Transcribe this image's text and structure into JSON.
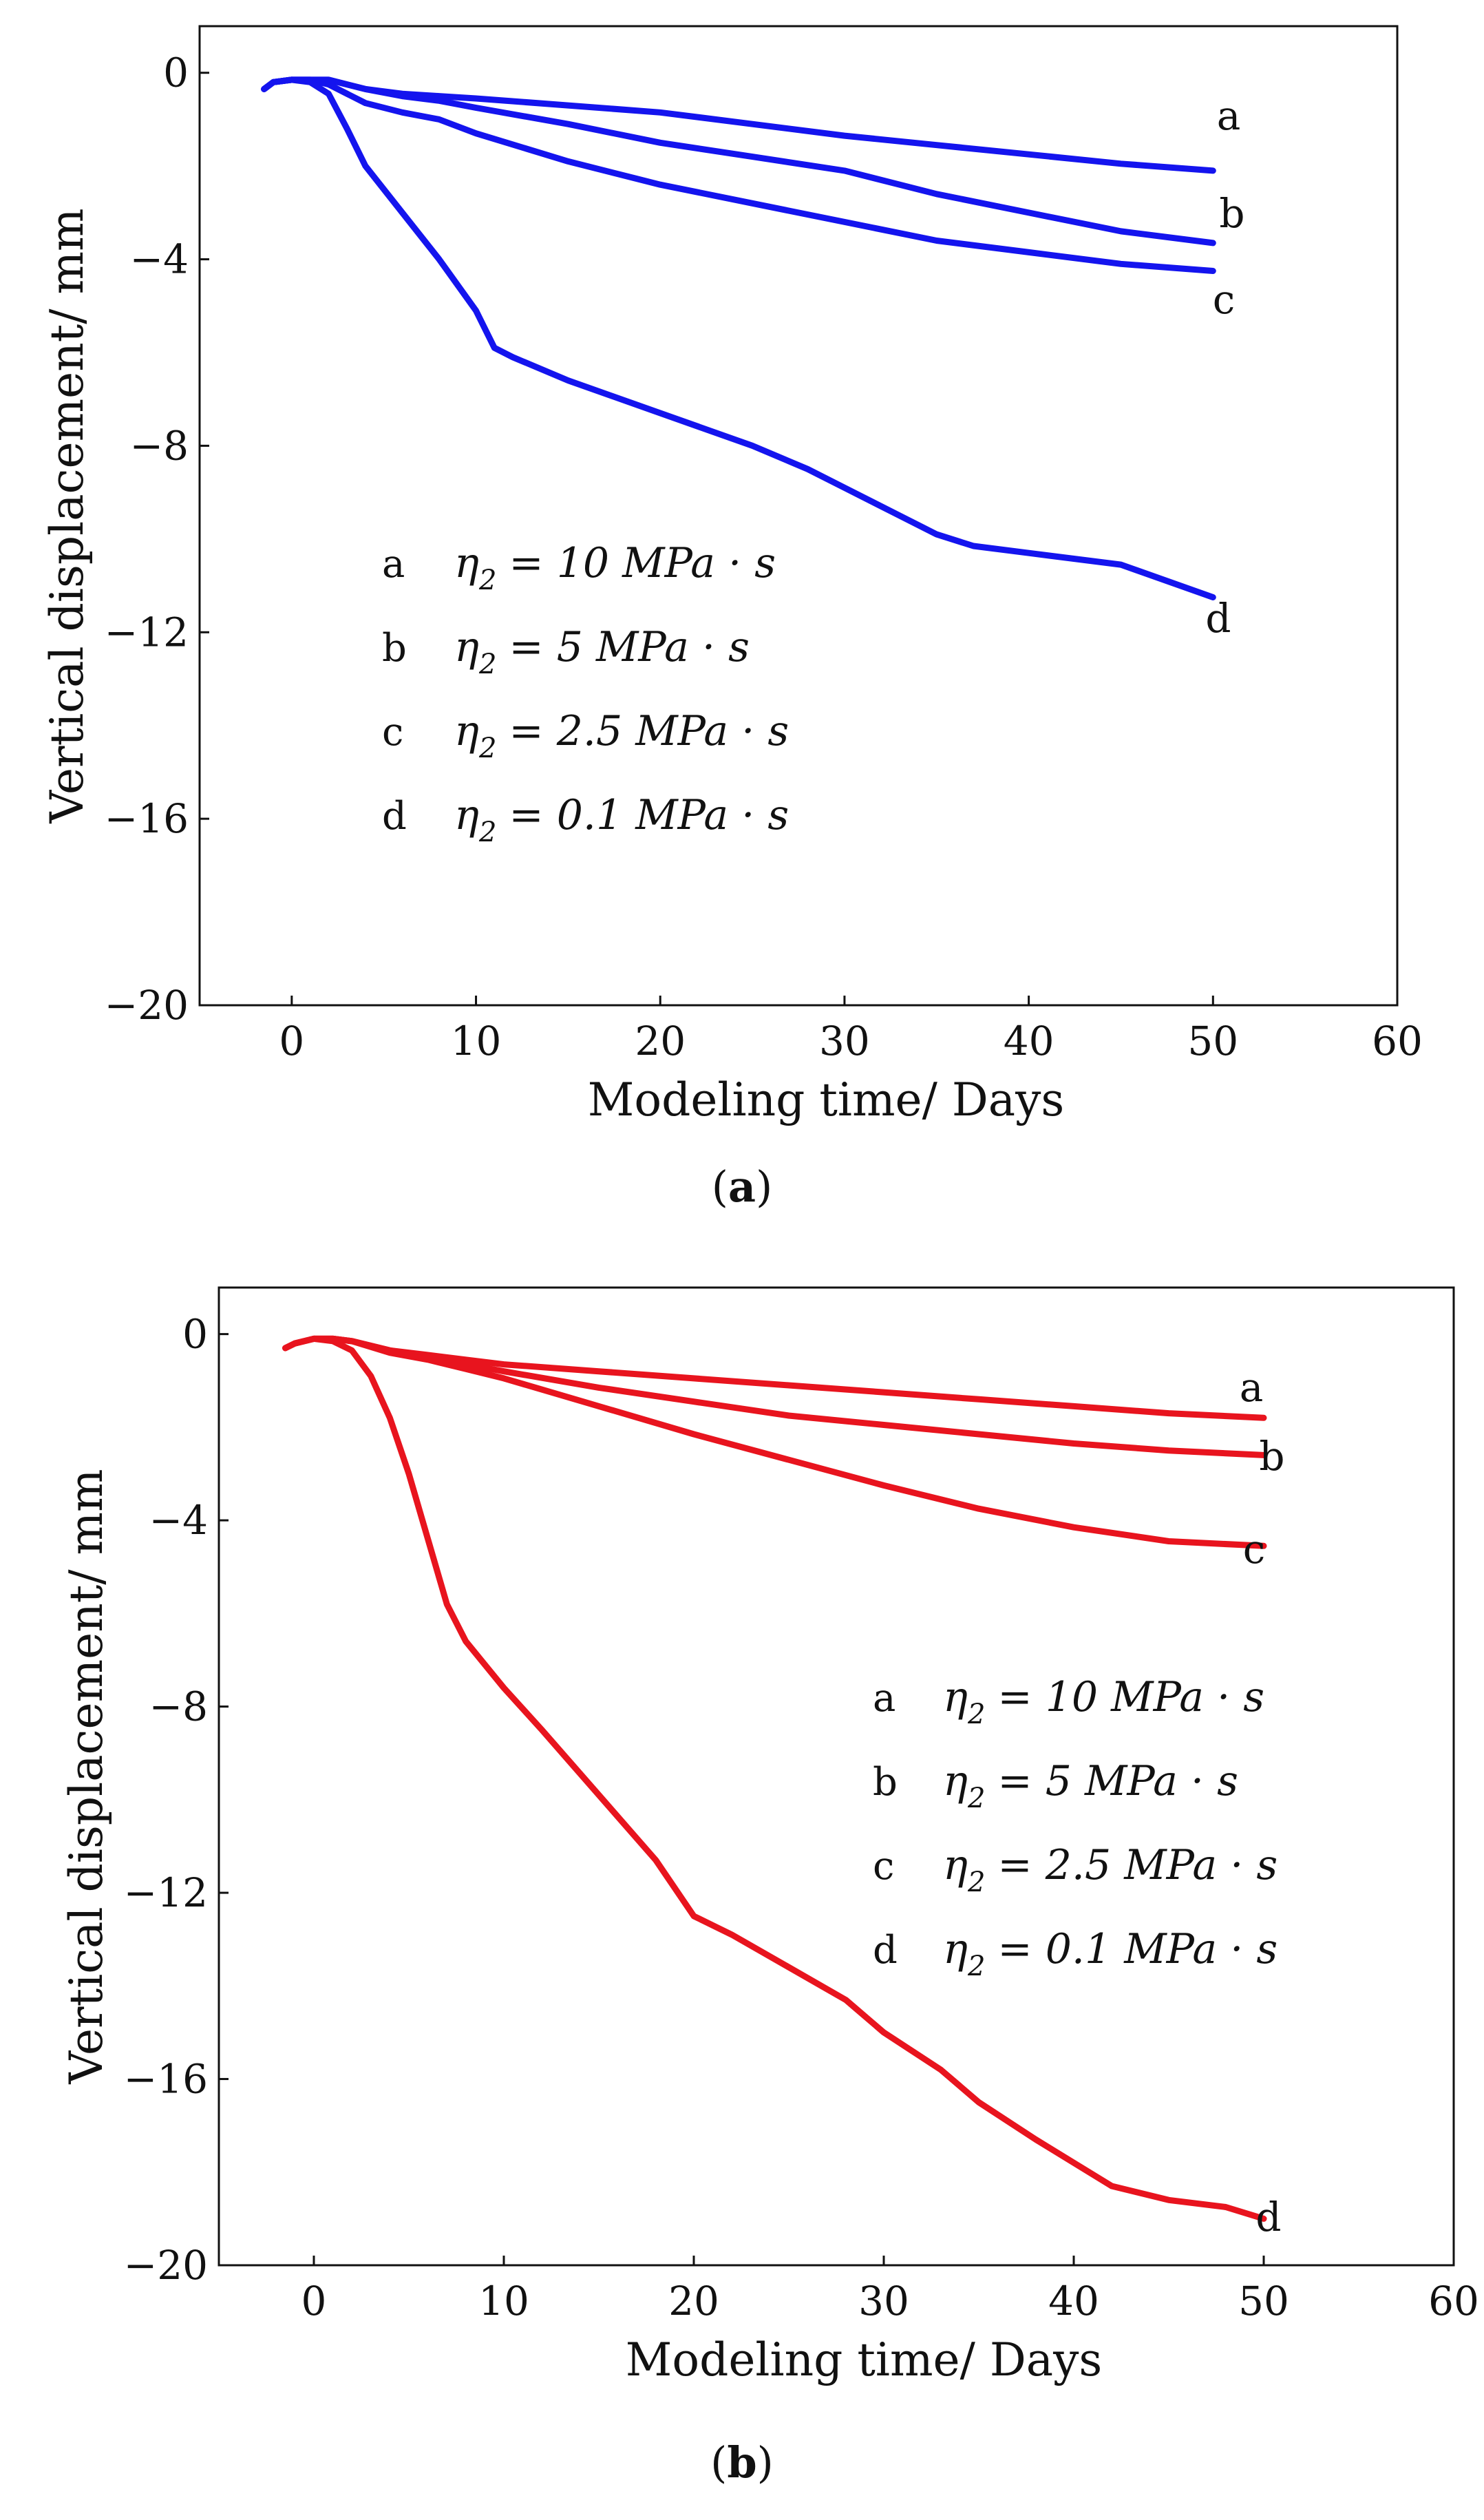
{
  "figure_title": "",
  "chart_data": [
    {
      "type": "line",
      "panel": "a",
      "caption_letter": "a",
      "xlabel": "Modeling time/ Days",
      "ylabel": "Vertical displacement/ mm",
      "xlim": [
        -5,
        60
      ],
      "ylim": [
        -20,
        1
      ],
      "xticks": [
        0,
        10,
        20,
        30,
        40,
        50,
        60
      ],
      "yticks": [
        0,
        -4,
        -8,
        -12,
        -16,
        -20
      ],
      "grid": false,
      "color": "#1414ee",
      "legend_position": "lower-left",
      "series": [
        {
          "name": "a",
          "label_value": "10",
          "x": [
            -1.5,
            -1,
            0,
            1,
            2,
            4,
            6,
            8,
            10,
            15,
            20,
            25,
            30,
            35,
            40,
            45,
            50
          ],
          "y": [
            -0.35,
            -0.2,
            -0.15,
            -0.15,
            -0.15,
            -0.35,
            -0.45,
            -0.5,
            -0.55,
            -0.7,
            -0.85,
            -1.1,
            -1.35,
            -1.55,
            -1.75,
            -1.95,
            -2.1
          ]
        },
        {
          "name": "b",
          "label_value": "5",
          "x": [
            -1.5,
            -1,
            0,
            1,
            2,
            4,
            6,
            8,
            10,
            15,
            20,
            25,
            30,
            35,
            40,
            45,
            50
          ],
          "y": [
            -0.35,
            -0.2,
            -0.15,
            -0.15,
            -0.15,
            -0.35,
            -0.5,
            -0.6,
            -0.75,
            -1.1,
            -1.5,
            -1.8,
            -2.1,
            -2.6,
            -3.0,
            -3.4,
            -3.65
          ]
        },
        {
          "name": "c",
          "label_value": "2.5",
          "x": [
            -1.5,
            -1,
            0,
            1,
            2,
            3,
            4,
            6,
            8,
            10,
            15,
            20,
            25,
            30,
            35,
            40,
            45,
            50
          ],
          "y": [
            -0.35,
            -0.2,
            -0.15,
            -0.15,
            -0.25,
            -0.45,
            -0.65,
            -0.85,
            -1.0,
            -1.3,
            -1.9,
            -2.4,
            -2.8,
            -3.2,
            -3.6,
            -3.85,
            -4.1,
            -4.25
          ]
        },
        {
          "name": "d",
          "label_value": "0.1",
          "x": [
            -1.5,
            -1,
            0,
            1,
            2,
            3,
            4,
            6,
            8,
            10,
            11,
            12,
            15,
            20,
            25,
            28,
            30,
            33,
            35,
            37,
            40,
            45,
            50
          ],
          "y": [
            -0.35,
            -0.2,
            -0.15,
            -0.2,
            -0.45,
            -1.2,
            -2.0,
            -3.0,
            -4.0,
            -5.1,
            -5.9,
            -6.1,
            -6.6,
            -7.3,
            -8.0,
            -8.5,
            -8.9,
            -9.5,
            -9.9,
            -10.15,
            -10.3,
            -10.55,
            -11.25
          ]
        }
      ],
      "legend": [
        {
          "key": "a",
          "lhs": "η",
          "sub": "2",
          "rhs": "= 10 MPa · s"
        },
        {
          "key": "b",
          "lhs": "η",
          "sub": "2",
          "rhs": "= 5 MPa · s"
        },
        {
          "key": "c",
          "lhs": "η",
          "sub": "2",
          "rhs": "= 2.5 MPa · s"
        },
        {
          "key": "d",
          "lhs": "η",
          "sub": "2",
          "rhs": "= 0.1 MPa · s"
        }
      ]
    },
    {
      "type": "line",
      "panel": "b",
      "caption_letter": "b",
      "xlabel": "Modeling time/ Days",
      "ylabel": "Vertical displacement/ mm",
      "xlim": [
        -5,
        60
      ],
      "ylim": [
        -20,
        1
      ],
      "xticks": [
        0,
        10,
        20,
        30,
        40,
        50,
        60
      ],
      "yticks": [
        0,
        -4,
        -8,
        -12,
        -16,
        -20
      ],
      "grid": false,
      "color": "#e8141e",
      "legend_position": "center-right",
      "series": [
        {
          "name": "a",
          "label_value": "10",
          "x": [
            -1.5,
            -1,
            0,
            1,
            2,
            4,
            6,
            8,
            10,
            15,
            20,
            25,
            30,
            35,
            40,
            45,
            50
          ],
          "y": [
            -0.3,
            -0.2,
            -0.1,
            -0.1,
            -0.15,
            -0.35,
            -0.45,
            -0.55,
            -0.65,
            -0.8,
            -0.95,
            -1.1,
            -1.25,
            -1.4,
            -1.55,
            -1.7,
            -1.8
          ]
        },
        {
          "name": "b",
          "label_value": "5",
          "x": [
            -1.5,
            -1,
            0,
            1,
            2,
            4,
            6,
            8,
            10,
            15,
            20,
            25,
            30,
            35,
            40,
            45,
            50
          ],
          "y": [
            -0.3,
            -0.2,
            -0.1,
            -0.1,
            -0.15,
            -0.35,
            -0.5,
            -0.65,
            -0.8,
            -1.15,
            -1.45,
            -1.75,
            -1.95,
            -2.15,
            -2.35,
            -2.5,
            -2.6
          ]
        },
        {
          "name": "c",
          "label_value": "2.5",
          "x": [
            -1.5,
            -1,
            0,
            1,
            2,
            4,
            6,
            8,
            10,
            15,
            20,
            25,
            30,
            35,
            40,
            45,
            50
          ],
          "y": [
            -0.3,
            -0.2,
            -0.1,
            -0.1,
            -0.15,
            -0.4,
            -0.55,
            -0.75,
            -0.95,
            -1.55,
            -2.15,
            -2.7,
            -3.25,
            -3.75,
            -4.15,
            -4.45,
            -4.55
          ]
        },
        {
          "name": "d",
          "label_value": "0.1",
          "x": [
            -1.5,
            -1,
            0,
            1,
            2,
            3,
            4,
            5,
            6,
            7,
            8,
            10,
            12,
            15,
            18,
            20,
            22,
            25,
            28,
            30,
            33,
            35,
            38,
            40,
            42,
            45,
            48,
            50
          ],
          "y": [
            -0.3,
            -0.2,
            -0.1,
            -0.15,
            -0.35,
            -0.9,
            -1.8,
            -3.0,
            -4.4,
            -5.8,
            -6.6,
            -7.6,
            -8.5,
            -9.9,
            -11.3,
            -12.5,
            -12.9,
            -13.6,
            -14.3,
            -15.0,
            -15.8,
            -16.5,
            -17.3,
            -17.8,
            -18.3,
            -18.6,
            -18.75,
            -19.0
          ]
        }
      ],
      "legend": [
        {
          "key": "a",
          "lhs": "η",
          "sub": "2",
          "rhs": "= 10 MPa · s"
        },
        {
          "key": "b",
          "lhs": "η",
          "sub": "2",
          "rhs": "= 5 MPa · s"
        },
        {
          "key": "c",
          "lhs": "η",
          "sub": "2",
          "rhs": "= 2.5 MPa · s"
        },
        {
          "key": "d",
          "lhs": "η",
          "sub": "2",
          "rhs": "= 0.1 MPa · s"
        }
      ]
    }
  ]
}
